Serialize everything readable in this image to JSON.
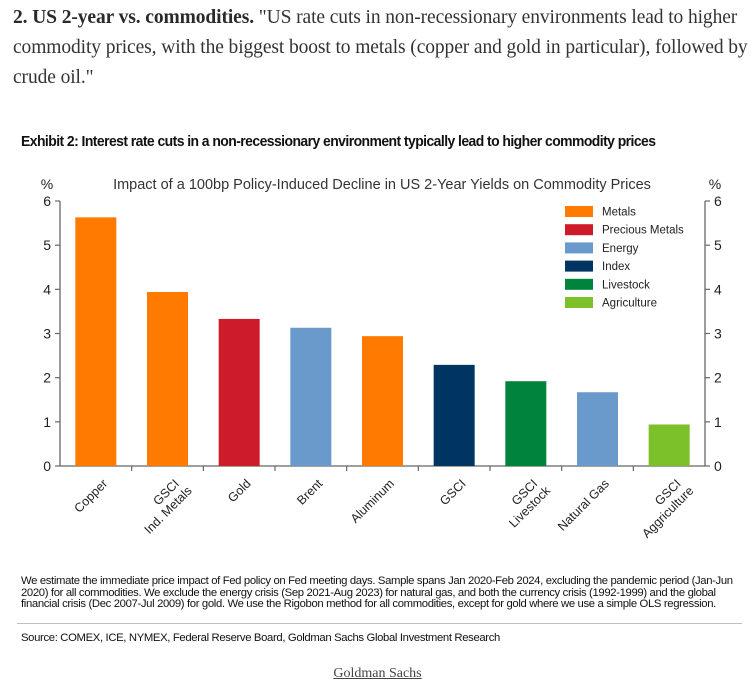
{
  "article": {
    "intro_bold": "2. US 2-year vs. commodities.",
    "intro_text": " \"US rate cuts in non-recessionary environments lead to higher commodity prices, with the biggest boost to metals (copper and gold in particular), followed by crude oil.\""
  },
  "exhibit": {
    "title": "Exhibit 2: Interest rate cuts in a non-recessionary environment typically lead to higher commodity prices",
    "footnote": "We estimate the immediate price impact of Fed policy on Fed meeting days. Sample spans Jan 2020-Feb 2024, excluding the pandemic period (Jan-Jun 2020) for all commodities. We exclude the energy crisis (Sep 2021-Aug 2023) for natural gas, and both the currency crisis (1992-1999) and the global financial crisis (Dec 2007-Jul 2009) for gold. We use the Rigobon method for all commodities, except for gold where we use a simple OLS regression.",
    "source": "Source: COMEX, ICE, NYMEX, Federal Reserve Board, Goldman Sachs Global Investment Research",
    "credit_link": "Goldman Sachs"
  },
  "chart_data": {
    "type": "bar",
    "title": "Impact of a 100bp Policy-Induced Decline in US 2-Year Yields on Commodity Prices",
    "xlabel": "",
    "ylabel": "%",
    "ylabel_right": "%",
    "ylim": [
      0,
      6
    ],
    "yticks": [
      0,
      1,
      2,
      3,
      4,
      5,
      6
    ],
    "grid": false,
    "legend_position": "top-right",
    "categories": [
      [
        "Copper"
      ],
      [
        "GSCI",
        "Ind. Metals"
      ],
      [
        "Gold"
      ],
      [
        "Brent"
      ],
      [
        "Aluminum"
      ],
      [
        "GSCI"
      ],
      [
        "GSCI",
        "Livestock"
      ],
      [
        "Natural Gas"
      ],
      [
        "GSCI",
        "Aggriculture"
      ]
    ],
    "values": [
      5.63,
      3.94,
      3.33,
      3.13,
      2.94,
      2.29,
      1.92,
      1.67,
      0.94
    ],
    "groups": [
      "Metals",
      "Metals",
      "Precious Metals",
      "Energy",
      "Metals",
      "Index",
      "Livestock",
      "Energy",
      "Agriculture"
    ],
    "legend": [
      {
        "name": "Metals",
        "color": "#FF7A00"
      },
      {
        "name": "Precious Metals",
        "color": "#CE1B2A"
      },
      {
        "name": "Energy",
        "color": "#6A9ACB"
      },
      {
        "name": "Index",
        "color": "#003562"
      },
      {
        "name": "Livestock",
        "color": "#00843D"
      },
      {
        "name": "Agriculture",
        "color": "#7CC12A"
      }
    ]
  }
}
